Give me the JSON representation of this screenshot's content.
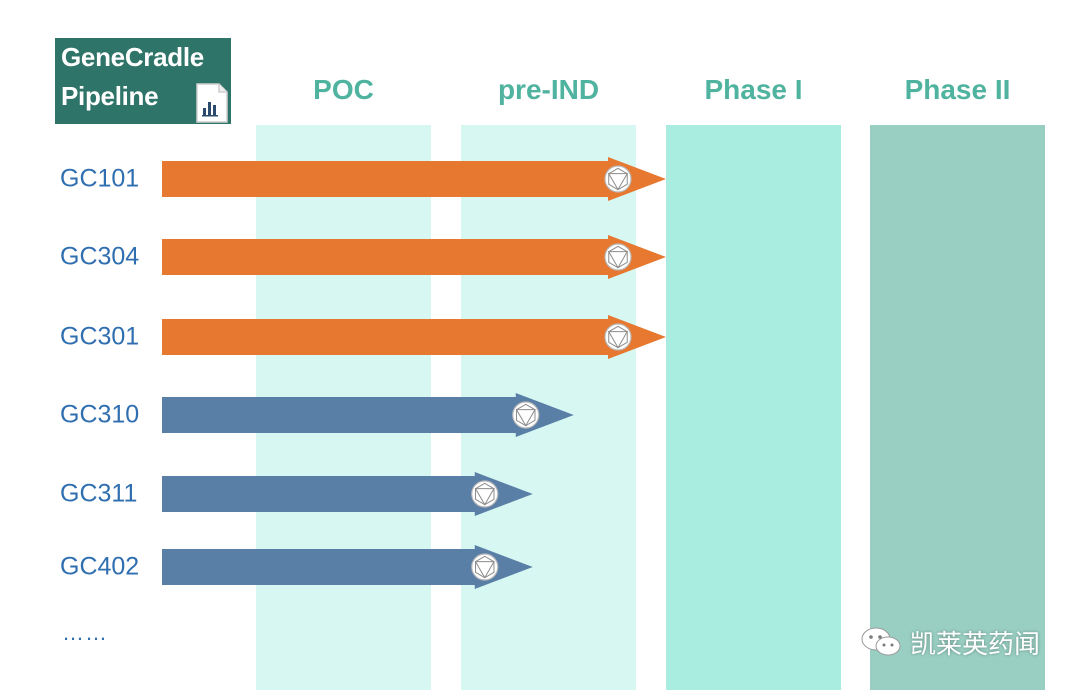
{
  "title": {
    "line1": "GeneCradle",
    "line2": "Pipeline"
  },
  "chart_data": {
    "type": "bar",
    "orientation": "horizontal",
    "stages": [
      "POC",
      "pre-IND",
      "Phase I",
      "Phase II"
    ],
    "categories": [
      "GC101",
      "GC304",
      "GC301",
      "GC310",
      "GC311",
      "GC402"
    ],
    "values": [
      2.0,
      2.0,
      2.0,
      1.55,
      1.35,
      1.35
    ],
    "value_unit": "stage columns reached (0 = POC start, 4 = Phase II end)",
    "xlim": [
      0,
      4
    ],
    "trailing_label": "……",
    "colors": {
      "advanced": "#e6782f",
      "early": "#5a7fa6",
      "stage_pale": "#d6f7f2",
      "stage_mid": "#a9ece0",
      "stage_dark": "#99cfc2"
    }
  },
  "watermark": {
    "text": "凯莱英药闻"
  }
}
